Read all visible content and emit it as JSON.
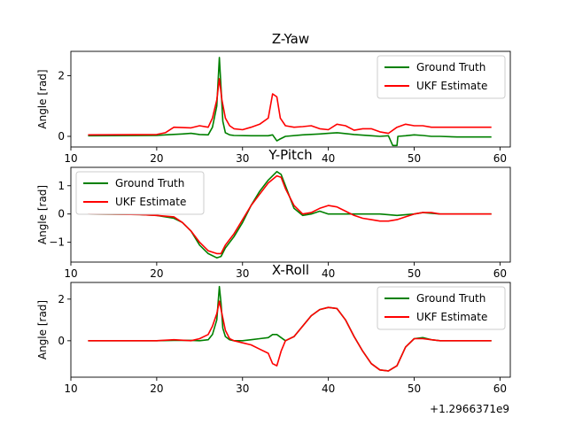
{
  "colors": {
    "ground_truth": "#008000",
    "ukf_estimate": "#ff0000"
  },
  "chart_data": [
    {
      "type": "line",
      "title": "Z-Yaw",
      "ylabel": "Angle [rad]",
      "xlim": [
        10,
        61.2
      ],
      "ylim": [
        -0.35,
        2.8
      ],
      "xticks": [
        10,
        20,
        30,
        40,
        50,
        60
      ],
      "yticks": [
        0,
        2
      ],
      "xtick_labels": [
        "10",
        "20",
        "30",
        "40",
        "50",
        "60"
      ],
      "ytick_labels": [
        "0",
        "2"
      ],
      "legend": "top-right",
      "grid": false,
      "series": [
        {
          "name": "Ground Truth",
          "color": "#008000",
          "x": [
            12,
            20,
            21,
            23,
            24,
            25,
            26,
            26.5,
            27,
            27.3,
            27.5,
            27.7,
            28,
            28.5,
            29,
            31,
            33,
            33.5,
            34,
            34.3,
            35,
            37,
            39,
            40,
            41,
            43,
            45,
            46,
            47,
            47.5,
            47.6,
            48,
            48.1,
            49,
            50,
            51,
            52,
            53,
            55,
            59
          ],
          "y": [
            0.02,
            0.03,
            0.05,
            0.08,
            0.1,
            0.06,
            0.05,
            0.3,
            1.0,
            2.6,
            1.6,
            0.5,
            0.12,
            0.05,
            0.03,
            0.02,
            0.02,
            0.05,
            -0.15,
            -0.1,
            0.0,
            0.05,
            0.08,
            0.1,
            0.12,
            0.06,
            0.02,
            0.0,
            0.02,
            -0.3,
            -0.3,
            -0.3,
            0.0,
            0.02,
            0.05,
            0.03,
            0.0,
            0.0,
            -0.02,
            -0.02
          ]
        },
        {
          "name": "UKF Estimate",
          "color": "#ff0000",
          "x": [
            12,
            20,
            21,
            22,
            24,
            25,
            26,
            26.5,
            27,
            27.3,
            27.6,
            28,
            28.5,
            29,
            30,
            31,
            32,
            33,
            33.5,
            34,
            34.4,
            35,
            36,
            37,
            38,
            39,
            40,
            41,
            42,
            43,
            44,
            45,
            46,
            47,
            48,
            49,
            50,
            51,
            52,
            53,
            54,
            55,
            59
          ],
          "y": [
            0.05,
            0.06,
            0.12,
            0.3,
            0.28,
            0.35,
            0.3,
            0.6,
            1.2,
            1.9,
            1.2,
            0.6,
            0.35,
            0.25,
            0.22,
            0.3,
            0.4,
            0.6,
            1.4,
            1.3,
            0.6,
            0.35,
            0.3,
            0.32,
            0.35,
            0.25,
            0.22,
            0.4,
            0.35,
            0.2,
            0.25,
            0.25,
            0.15,
            0.1,
            0.3,
            0.4,
            0.35,
            0.35,
            0.3,
            0.3,
            0.3,
            0.3,
            0.3
          ]
        }
      ]
    },
    {
      "type": "line",
      "title": "Y-Pitch",
      "ylabel": "Angle [rad]",
      "xlim": [
        10,
        61.2
      ],
      "ylim": [
        -1.7,
        1.65
      ],
      "xticks": [
        10,
        20,
        30,
        40,
        50,
        60
      ],
      "yticks": [
        -1,
        0,
        1
      ],
      "xtick_labels": [
        "10",
        "20",
        "30",
        "40",
        "50",
        "60"
      ],
      "ytick_labels": [
        "−1",
        "0",
        "1"
      ],
      "legend": "top-left",
      "grid": false,
      "series": [
        {
          "name": "Ground Truth",
          "color": "#008000",
          "x": [
            12,
            18,
            20,
            22,
            23,
            24,
            25,
            26,
            27,
            27.5,
            28,
            29,
            30,
            31,
            32,
            33,
            34,
            34.5,
            35,
            36,
            37,
            38,
            39,
            40,
            42,
            44,
            46,
            48,
            50,
            51,
            53,
            55,
            59
          ],
          "y": [
            0.0,
            -0.02,
            -0.05,
            -0.15,
            -0.3,
            -0.6,
            -1.1,
            -1.4,
            -1.55,
            -1.5,
            -1.2,
            -0.8,
            -0.3,
            0.3,
            0.8,
            1.2,
            1.5,
            1.4,
            1.0,
            0.2,
            -0.05,
            0.0,
            0.1,
            0.0,
            0.0,
            0.0,
            0.0,
            -0.05,
            0.0,
            0.05,
            0.0,
            0.0,
            0.0
          ]
        },
        {
          "name": "UKF Estimate",
          "color": "#ff0000",
          "x": [
            12,
            18,
            20,
            22,
            23,
            24,
            25,
            26,
            27,
            27.5,
            28,
            29,
            30,
            31,
            32,
            33,
            34,
            34.5,
            35,
            36,
            37,
            38,
            39,
            40,
            41,
            42,
            43,
            44,
            45,
            46,
            47,
            48,
            49,
            50,
            51,
            52,
            53,
            55,
            59
          ],
          "y": [
            0.0,
            -0.02,
            -0.05,
            -0.1,
            -0.3,
            -0.6,
            -1.0,
            -1.3,
            -1.4,
            -1.4,
            -1.1,
            -0.7,
            -0.2,
            0.3,
            0.7,
            1.1,
            1.35,
            1.3,
            0.9,
            0.3,
            0.0,
            0.05,
            0.2,
            0.3,
            0.25,
            0.1,
            -0.05,
            -0.15,
            -0.2,
            -0.25,
            -0.25,
            -0.2,
            -0.1,
            0.0,
            0.05,
            0.05,
            0.0,
            0.0,
            0.0
          ]
        }
      ]
    },
    {
      "type": "line",
      "title": "X-Roll",
      "ylabel": "Angle [rad]",
      "xlim": [
        10,
        61.2
      ],
      "ylim": [
        -1.75,
        2.8
      ],
      "xticks": [
        10,
        20,
        30,
        40,
        50,
        60
      ],
      "yticks": [
        0,
        2
      ],
      "xtick_labels": [
        "10",
        "20",
        "30",
        "40",
        "50",
        "60"
      ],
      "ytick_labels": [
        "0",
        "2"
      ],
      "x_offset_label": "+1.2966371e9",
      "legend": "top-right",
      "grid": false,
      "series": [
        {
          "name": "Ground Truth",
          "color": "#008000",
          "x": [
            12,
            20,
            22,
            24,
            25,
            26,
            26.5,
            27,
            27.3,
            27.5,
            27.7,
            28,
            28.5,
            29,
            30,
            31,
            32,
            33,
            33.5,
            34,
            34.5,
            35,
            36,
            37,
            38,
            39,
            40,
            41,
            42,
            43,
            44,
            45,
            46,
            47,
            48,
            49,
            50,
            51,
            52,
            53,
            55,
            59
          ],
          "y": [
            0.0,
            0.0,
            0.02,
            0.02,
            0.0,
            0.05,
            0.3,
            1.0,
            2.6,
            1.8,
            0.6,
            0.2,
            0.05,
            0.0,
            0.0,
            0.05,
            0.1,
            0.15,
            0.3,
            0.3,
            0.15,
            0.0,
            0.2,
            0.7,
            1.2,
            1.5,
            1.6,
            1.55,
            1.0,
            0.2,
            -0.5,
            -1.1,
            -1.4,
            -1.45,
            -1.2,
            -0.3,
            0.1,
            0.15,
            0.05,
            0.0,
            0.0,
            0.0
          ]
        },
        {
          "name": "UKF Estimate",
          "color": "#ff0000",
          "x": [
            12,
            20,
            22,
            24,
            25,
            26,
            26.5,
            27,
            27.3,
            27.6,
            28,
            28.5,
            29,
            30,
            31,
            32,
            33,
            33.5,
            34,
            34.5,
            35,
            36,
            37,
            38,
            39,
            40,
            41,
            42,
            43,
            44,
            45,
            46,
            47,
            48,
            49,
            50,
            51,
            52,
            53,
            55,
            59
          ],
          "y": [
            0.0,
            0.0,
            0.05,
            0.0,
            0.1,
            0.3,
            0.7,
            1.3,
            1.9,
            1.3,
            0.5,
            0.1,
            0.0,
            -0.1,
            -0.2,
            -0.4,
            -0.6,
            -1.1,
            -1.2,
            -0.5,
            0.0,
            0.2,
            0.7,
            1.2,
            1.5,
            1.6,
            1.55,
            1.0,
            0.2,
            -0.5,
            -1.1,
            -1.4,
            -1.45,
            -1.2,
            -0.3,
            0.1,
            0.1,
            0.05,
            0.0,
            0.0,
            0.0
          ]
        }
      ]
    }
  ]
}
